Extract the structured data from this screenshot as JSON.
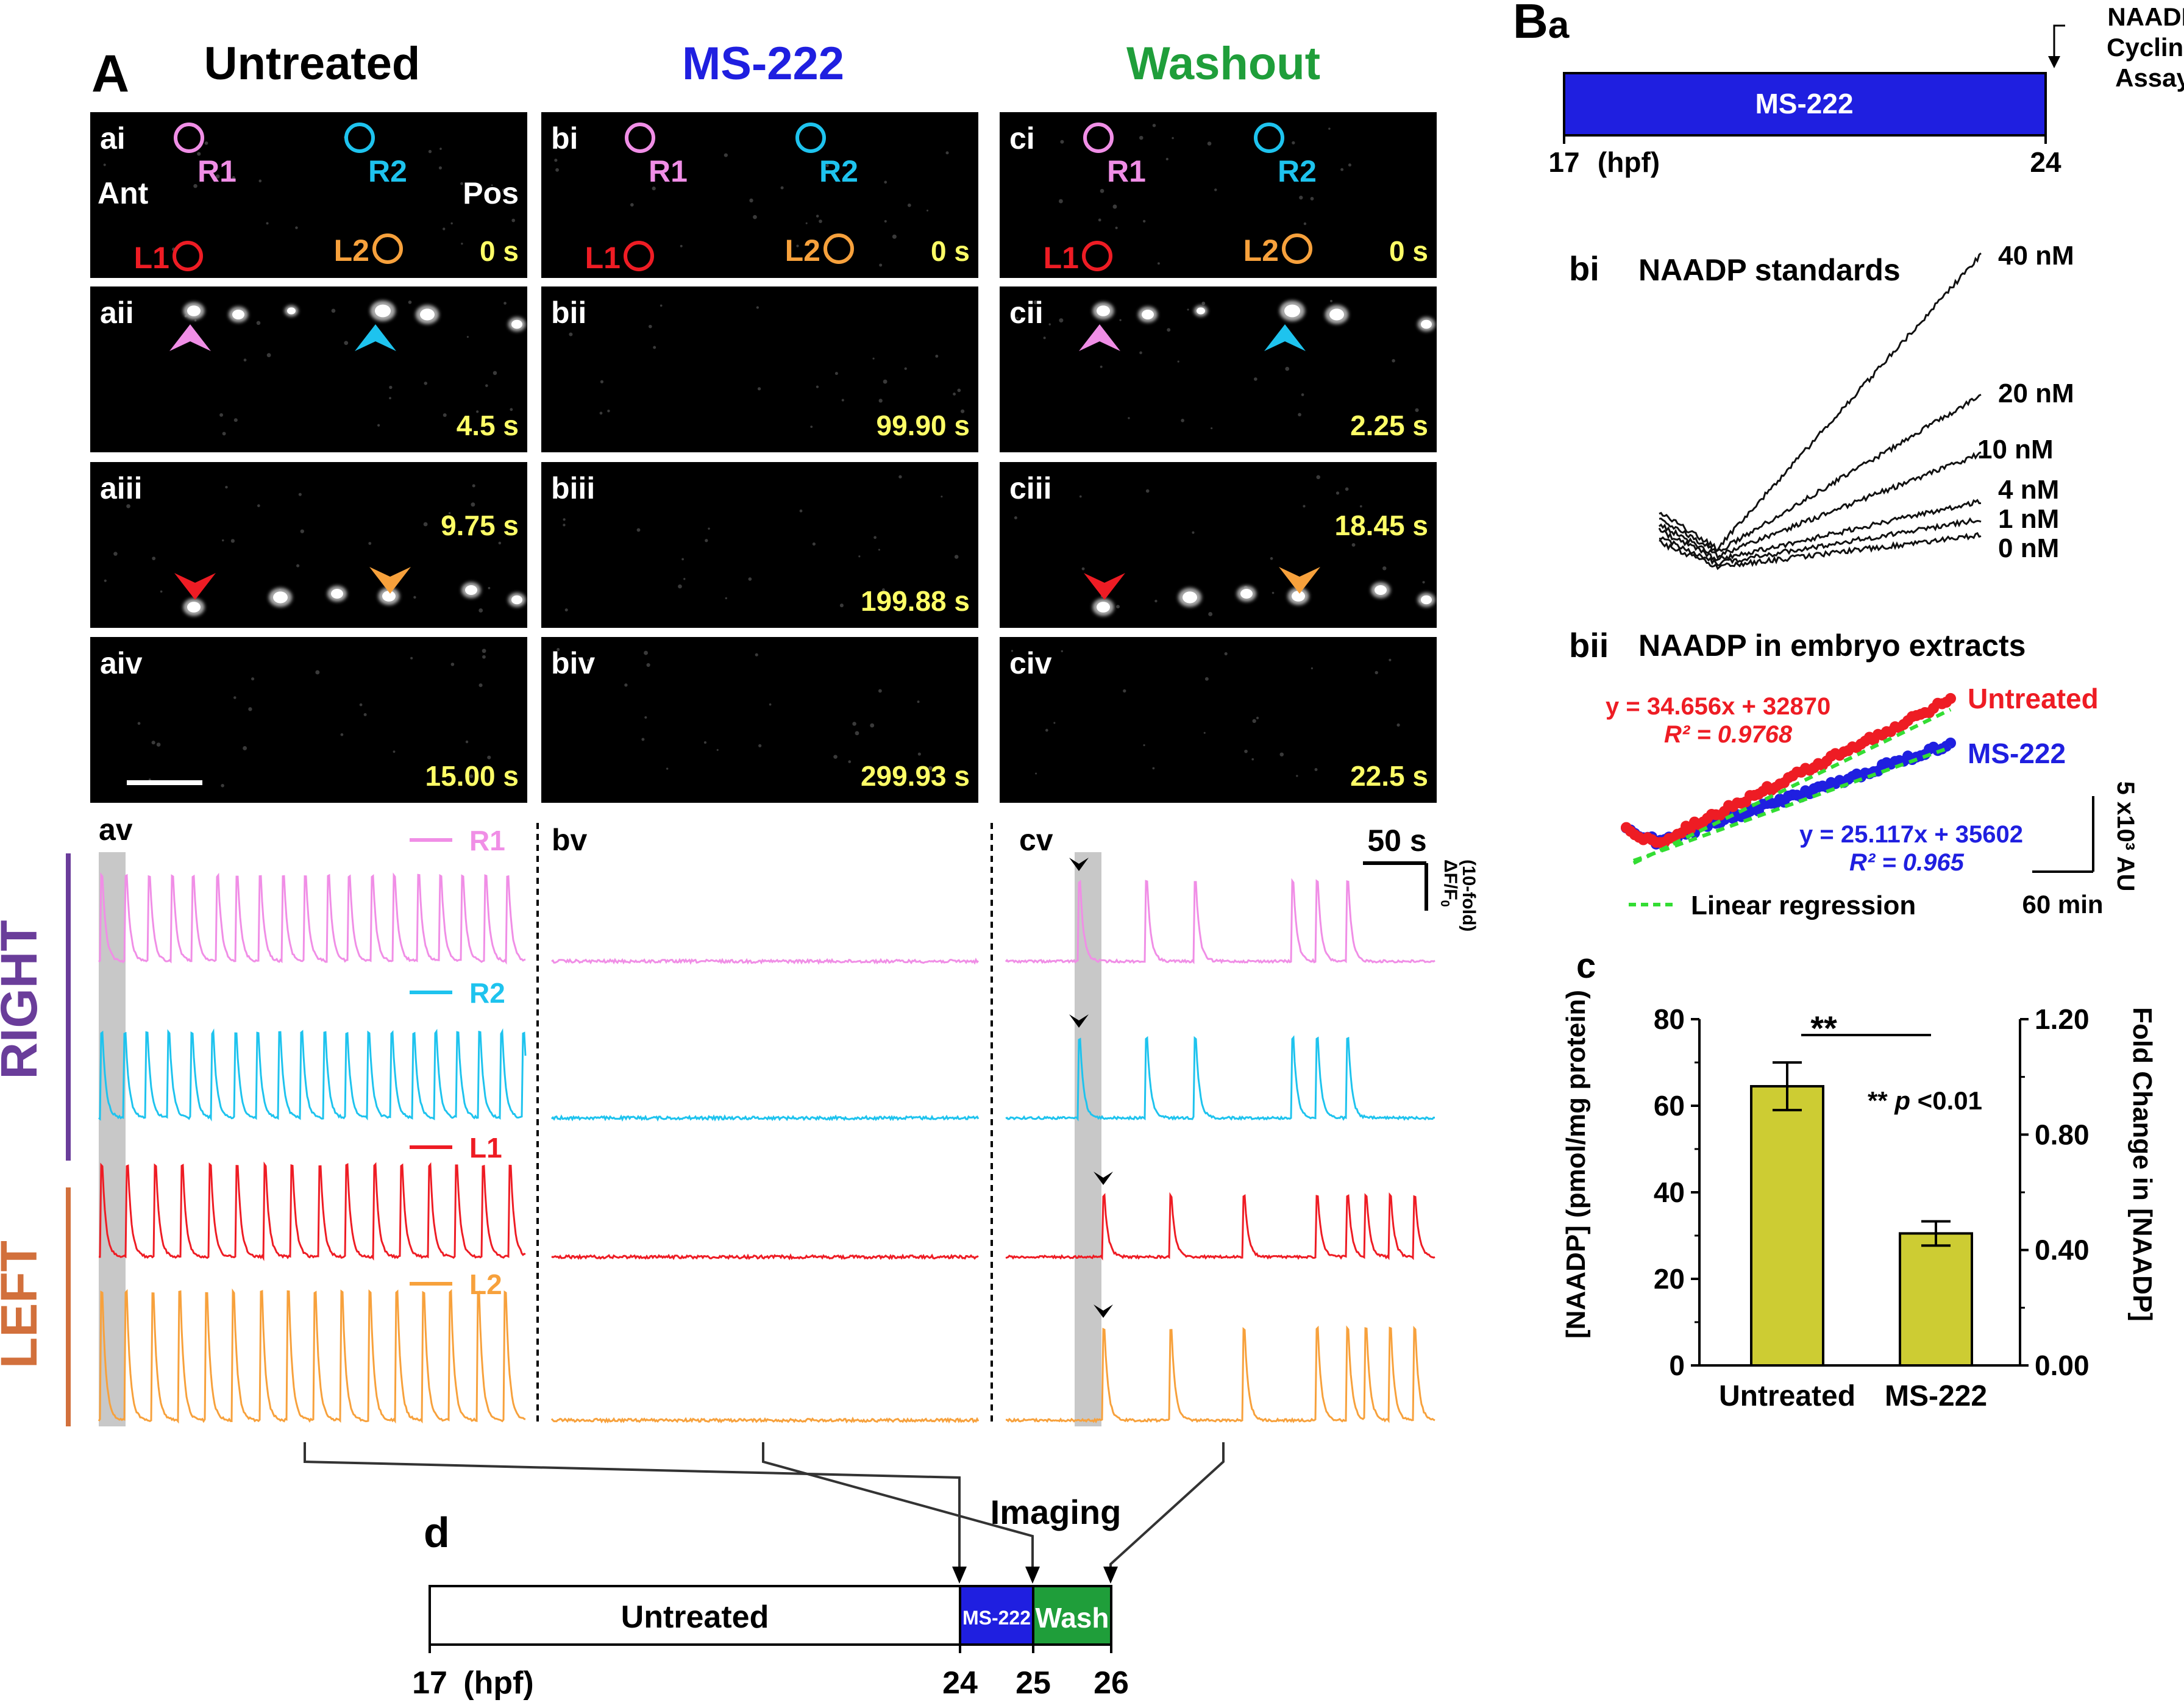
{
  "panelA": {
    "letter": "A",
    "conditions": [
      {
        "title": "Untreated",
        "color": "#000000"
      },
      {
        "title": "MS-222",
        "color": "#1f1fe0"
      },
      {
        "title": "Washout",
        "color": "#1f9e3a"
      }
    ],
    "rows": [
      {
        "labels": [
          "ai",
          "bi",
          "ci"
        ],
        "times": [
          "0 s",
          "0 s",
          "0 s"
        ]
      },
      {
        "labels": [
          "aii",
          "bii",
          "cii"
        ],
        "times": [
          "4.5 s",
          "99.90 s",
          "2.25 s"
        ]
      },
      {
        "labels": [
          "aiii",
          "biii",
          "ciii"
        ],
        "times": [
          "9.75 s",
          "199.88 s",
          "18.45 s"
        ]
      },
      {
        "labels": [
          "aiv",
          "biv",
          "civ"
        ],
        "times": [
          "15.00 s",
          "299.93 s",
          "22.5 s"
        ]
      }
    ],
    "roi": {
      "R1": "R1",
      "R2": "R2",
      "L1": "L1",
      "L2": "L2",
      "ant": "Ant",
      "pos": "Pos"
    },
    "traces": {
      "labels": [
        "av",
        "bv",
        "cv"
      ],
      "series": [
        {
          "name": "R1",
          "color": "#f08ee6"
        },
        {
          "name": "R2",
          "color": "#1ec3ee"
        },
        {
          "name": "L1",
          "color": "#ee1c24"
        },
        {
          "name": "L2",
          "color": "#f7a13c"
        }
      ],
      "side_right": "RIGHT",
      "side_left": "LEFT",
      "side_right_color": "#6a3d9a",
      "side_left_color": "#d2703c",
      "scale_time": "50 s",
      "scale_df_line1": "ΔF/F",
      "scale_df_sub": "0",
      "scale_df_line2": "(10-fold)"
    }
  },
  "panelD": {
    "letter": "d",
    "imaging": "Imaging",
    "segments": [
      "Untreated",
      "MS-222",
      "Wash"
    ],
    "ticks": [
      "17",
      "(hpf)",
      "24",
      "25",
      "26"
    ]
  },
  "panelB": {
    "letter": "B",
    "sub_a": "a",
    "bar_label": "MS-222",
    "assay": [
      "NAADP",
      "Cycling",
      "Assay"
    ],
    "ticks": [
      "17",
      "(hpf)",
      "24"
    ],
    "bi_label": "bi",
    "bi_title": "NAADP standards",
    "standards": [
      "40 nM",
      "20 nM",
      "10 nM",
      "4 nM",
      "1 nM",
      "0 nM"
    ],
    "bii_label": "bii",
    "bii_title": "NAADP in embryo extracts",
    "untreated_eq": "y = 34.656x + 32870",
    "untreated_r2": "R² = 0.9768",
    "ms_eq": "y = 25.117x + 35602",
    "ms_r2": "R² = 0.965",
    "untreated_label": "Untreated",
    "ms_label": "MS-222",
    "regression": "Linear regression",
    "scale_y": "5 x10³ AU",
    "scale_x": "60 min"
  },
  "chart_data": {
    "type": "bar",
    "title": "c",
    "categories": [
      "Untreated",
      "MS-222"
    ],
    "values": [
      64.5,
      30.5
    ],
    "errors": [
      5.5,
      2.8
    ],
    "ylabel": "[NAADP] (pmol/mg protein)",
    "y2label": "Fold Change in [NAADP]",
    "ylim": [
      0,
      80
    ],
    "y2lim": [
      0,
      1.2
    ],
    "yticks": [
      "0",
      "20",
      "40",
      "60",
      "80"
    ],
    "y2ticks": [
      "0.00",
      "0.40",
      "0.80",
      "1.20"
    ],
    "significance": "**",
    "pvalue_prefix": "** ",
    "pvalue_p": "p",
    "pvalue_suffix": " <0.01",
    "bar_color": "#cdcc33"
  }
}
